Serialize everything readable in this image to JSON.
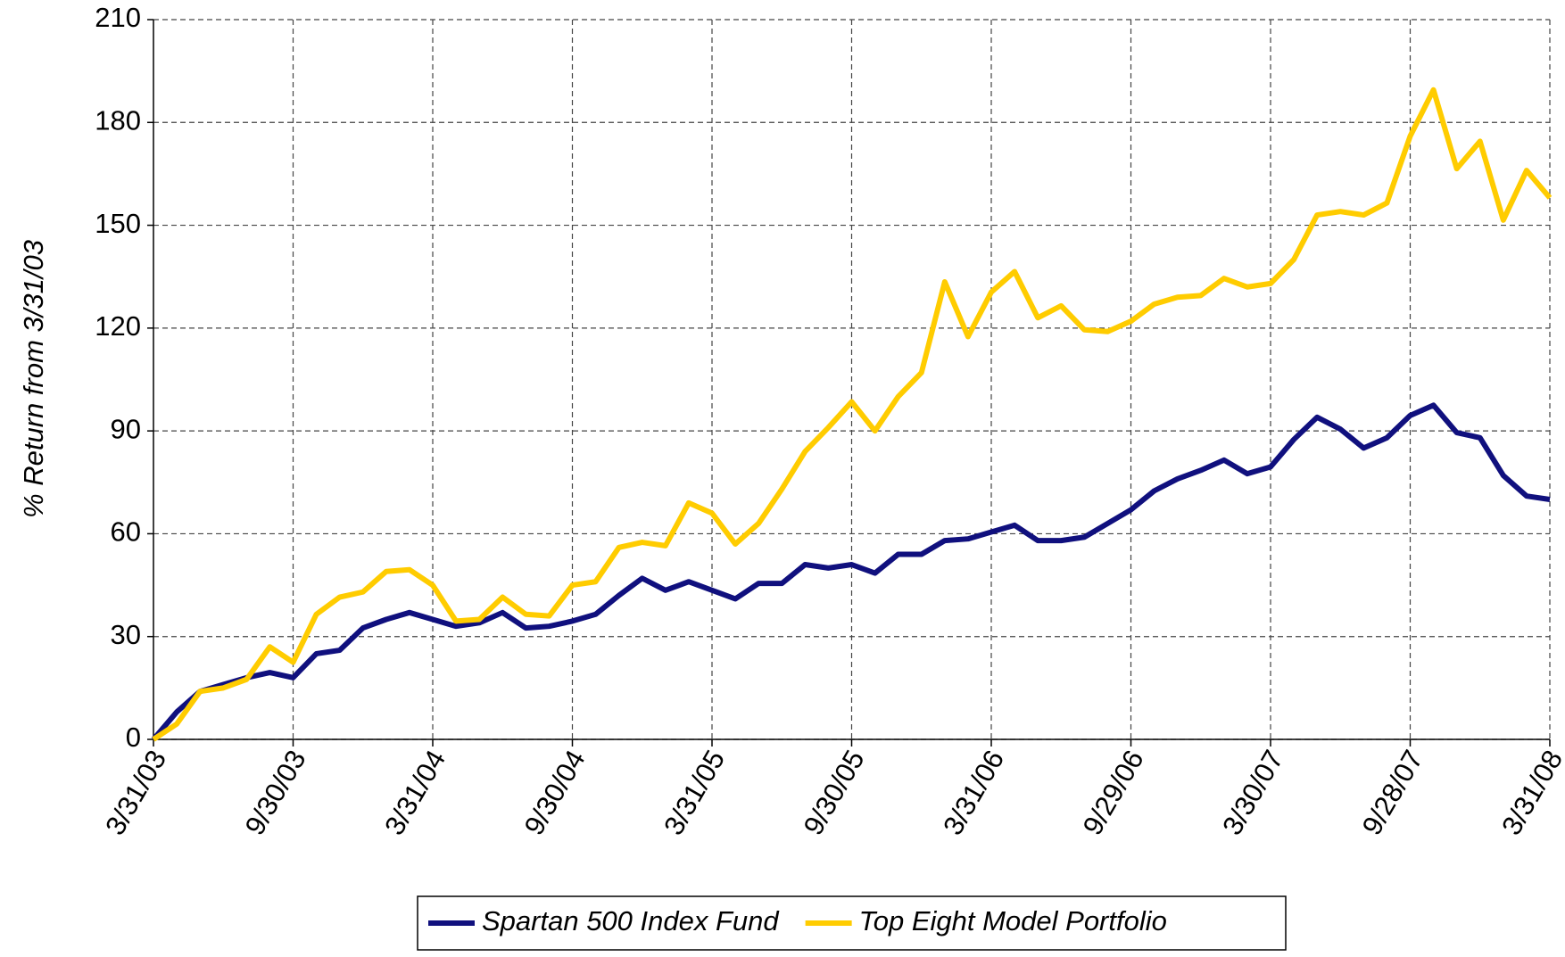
{
  "chart_data": {
    "type": "line",
    "y_label": "% Return from 3/31/03",
    "categories": [
      "3/31/03",
      null,
      null,
      null,
      null,
      null,
      "9/30/03",
      null,
      null,
      null,
      null,
      null,
      "3/31/04",
      null,
      null,
      null,
      null,
      null,
      "9/30/04",
      null,
      null,
      null,
      null,
      null,
      "3/31/05",
      null,
      null,
      null,
      null,
      null,
      "9/30/05",
      null,
      null,
      null,
      null,
      null,
      "3/31/06",
      null,
      null,
      null,
      null,
      null,
      "9/29/06",
      null,
      null,
      null,
      null,
      null,
      "3/30/07",
      null,
      null,
      null,
      null,
      null,
      "9/28/07",
      null,
      null,
      null,
      null,
      null,
      "3/31/08"
    ],
    "series": [
      {
        "name": "Spartan 500 Index Fund",
        "color": "#10107e",
        "values": [
          0,
          8,
          14,
          16,
          18,
          19.5,
          18,
          25,
          26,
          32.5,
          35,
          37,
          35,
          33,
          34,
          37,
          32.5,
          33,
          34.5,
          36.5,
          42,
          47,
          43.5,
          46,
          43.5,
          41,
          45.5,
          45.5,
          51,
          50,
          51,
          48.5,
          54,
          54,
          58,
          58.5,
          60.5,
          62.5,
          58,
          58,
          59,
          63,
          67,
          72.5,
          76,
          78.5,
          81.5,
          77.5,
          79.5,
          87.5,
          94,
          90.5,
          85,
          88,
          94.5,
          97.5,
          89.5,
          88,
          77,
          71,
          70
        ]
      },
      {
        "name": "Top Eight Model Portfolio",
        "color": "#ffcc00",
        "values": [
          0,
          4.5,
          14,
          15,
          17.5,
          27,
          22.5,
          36.5,
          41.5,
          43,
          49,
          49.5,
          45,
          34.5,
          35,
          41.5,
          36.5,
          36,
          45,
          46,
          56,
          57.5,
          56.5,
          69,
          66,
          57,
          63,
          73,
          84,
          91,
          98.5,
          90,
          100,
          107,
          133.5,
          117.5,
          130.5,
          136.5,
          123,
          126.5,
          119.5,
          119,
          122,
          127,
          129,
          129.5,
          134.5,
          132,
          133,
          140,
          153,
          154,
          153,
          156.5,
          176,
          189.5,
          166.5,
          174.5,
          151.5,
          166,
          158
        ]
      }
    ],
    "ylim": [
      0,
      210
    ],
    "yticks": [
      0,
      30,
      60,
      90,
      120,
      150,
      180,
      210
    ],
    "grid": true,
    "legend": "bottom"
  }
}
